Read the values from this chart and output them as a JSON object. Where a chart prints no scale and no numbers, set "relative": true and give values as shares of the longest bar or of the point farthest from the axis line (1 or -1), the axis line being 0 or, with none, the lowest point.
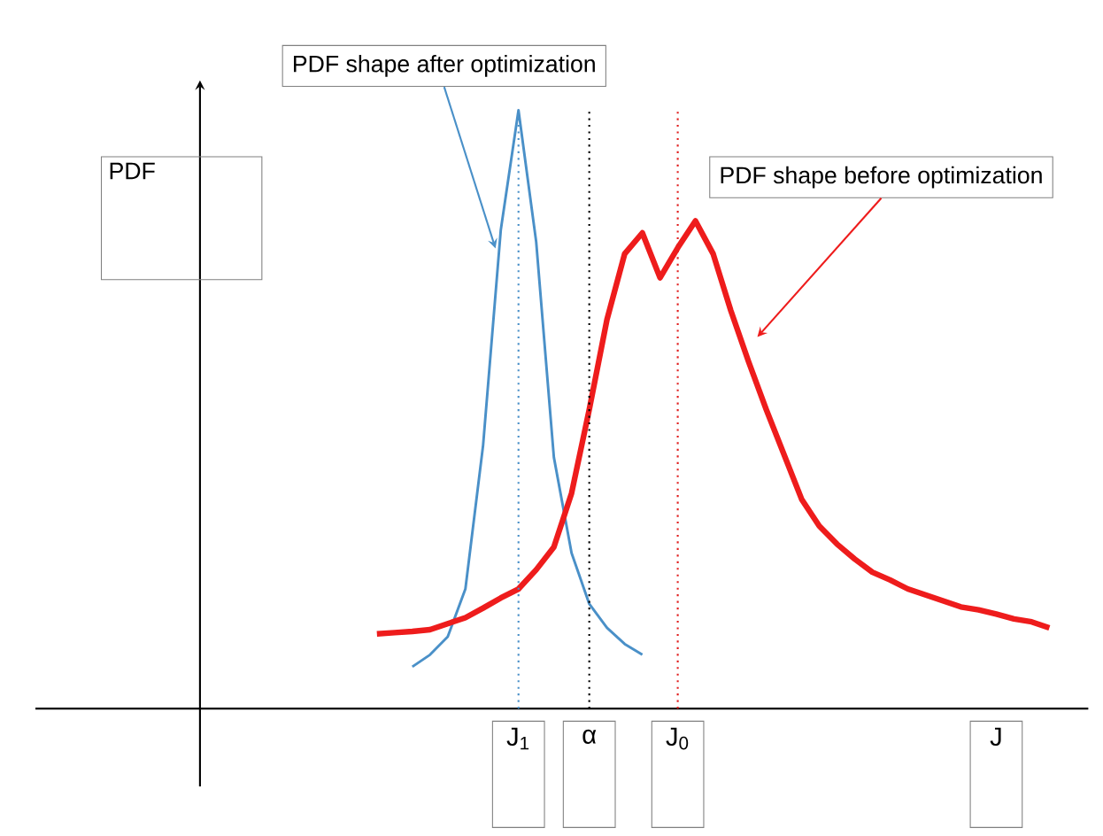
{
  "chart_data": {
    "type": "line",
    "relative": true,
    "tick_labels": "x",
    "categories": [
      null,
      null,
      null,
      null,
      null,
      null,
      null,
      null,
      null,
      "J$_{1}$",
      null,
      null,
      null,
      "α",
      null,
      null,
      null,
      null,
      "J$_{0}$",
      null,
      null,
      null,
      null,
      null,
      null,
      null,
      null,
      null,
      null,
      null,
      null,
      null,
      null,
      null,
      null,
      null,
      "J",
      null,
      null,
      null
    ],
    "annotations": [
      "PDF",
      "PDF shape after optimization",
      "PDF shape before optimization"
    ],
    "ref_lines": [
      {
        "axis": "x",
        "value": "J$_{1}$",
        "color": "#4a90c8",
        "line_style": "dotted"
      },
      {
        "axis": "x",
        "value": "α",
        "color": "#000000",
        "line_style": "dotted"
      },
      {
        "axis": "x",
        "value": "J$_{0}$",
        "color": "#e02020",
        "line_style": "dotted"
      }
    ],
    "series": [
      {
        "color": "#4a90c8",
        "values": [
          null,
          null,
          null,
          0.07,
          0.09,
          0.12,
          0.2,
          0.44,
          0.8,
          1,
          0.78,
          0.42,
          0.26,
          0.175,
          0.135,
          0.108,
          0.09,
          null,
          null,
          null,
          null,
          null,
          null,
          null,
          null,
          null,
          null,
          null,
          null,
          null,
          null,
          null,
          null,
          null,
          null,
          null,
          null,
          null,
          null,
          null
        ]
      },
      {
        "color": "#ee1c1c",
        "values": [
          null,
          0.125,
          0.127,
          0.129,
          0.132,
          0.142,
          0.152,
          0.168,
          0.185,
          0.2,
          0.232,
          0.27,
          0.36,
          0.5,
          0.65,
          0.76,
          0.795,
          0.72,
          0.77,
          0.815,
          0.76,
          0.665,
          0.58,
          0.5,
          0.425,
          0.35,
          0.305,
          0.275,
          0.25,
          0.228,
          0.215,
          0.2,
          0.19,
          0.18,
          0.17,
          0.165,
          0.158,
          0.15,
          0.145,
          0.135
        ]
      }
    ]
  }
}
